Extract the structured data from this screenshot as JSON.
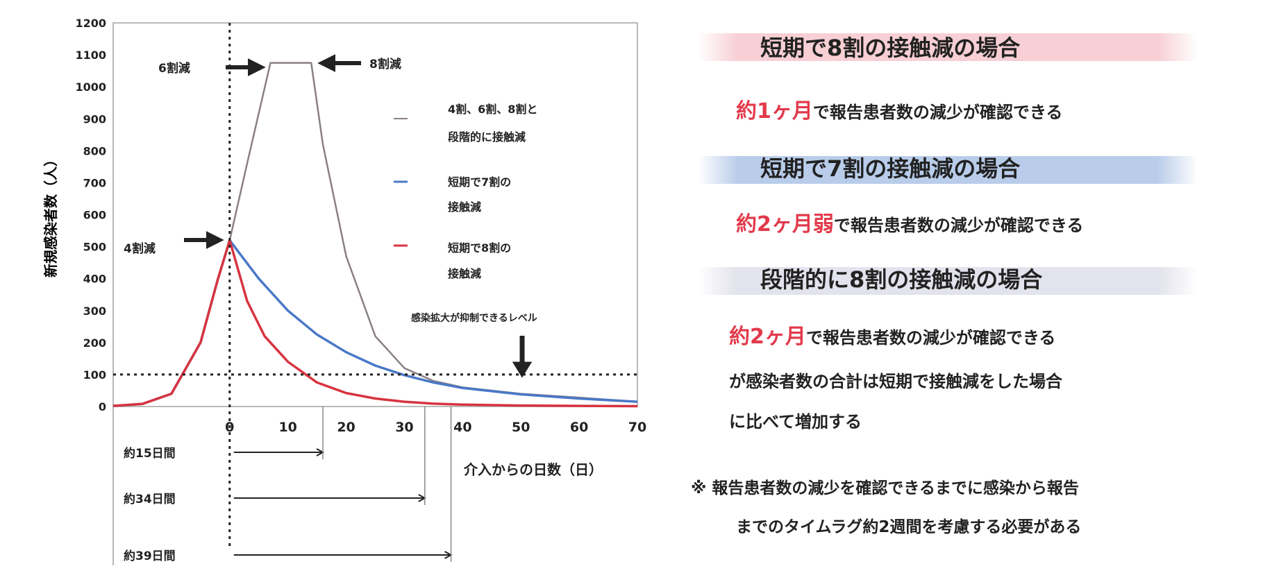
{
  "chart_data": {
    "type": "line",
    "ylabel": "新規感染者数（人）",
    "xlabel": "介入からの日数（日）",
    "x_ticks": [
      0,
      10,
      20,
      30,
      40,
      50,
      60,
      70
    ],
    "y_ticks": [
      0,
      100,
      200,
      300,
      400,
      500,
      600,
      700,
      800,
      900,
      1000,
      1100,
      1200
    ],
    "xlim": [
      -20,
      70
    ],
    "ylim": [
      0,
      1200
    ],
    "threshold": 100,
    "series": [
      {
        "name": "4割、6割、8割と 段階的に接触減",
        "color": "#8a7f85",
        "x": [
          -20,
          -15,
          -10,
          -5,
          -2,
          0,
          3,
          7,
          10,
          14,
          16,
          20,
          25,
          30,
          35,
          40,
          50,
          60,
          70
        ],
        "y": [
          2,
          8,
          40,
          200,
          400,
          520,
          760,
          1075,
          1075,
          1075,
          820,
          470,
          220,
          120,
          80,
          60,
          40,
          28,
          15
        ]
      },
      {
        "name": "短期で7割の 接触減",
        "color": "#4a78c8",
        "x": [
          -20,
          -15,
          -10,
          -5,
          -2,
          0,
          5,
          10,
          15,
          20,
          25,
          30,
          35,
          40,
          50,
          60,
          70
        ],
        "y": [
          2,
          8,
          40,
          200,
          400,
          520,
          400,
          300,
          225,
          170,
          128,
          98,
          75,
          58,
          38,
          25,
          15
        ]
      },
      {
        "name": "短期で8割の 接触減",
        "color": "#d7333f",
        "x": [
          -20,
          -15,
          -10,
          -5,
          -2,
          0,
          3,
          6,
          10,
          15,
          20,
          25,
          30,
          35,
          40,
          50,
          60,
          70
        ],
        "y": [
          2,
          8,
          40,
          200,
          400,
          520,
          330,
          220,
          140,
          75,
          42,
          25,
          15,
          9,
          6,
          3,
          2,
          1
        ]
      }
    ],
    "annotations": {
      "six": "6割減",
      "eight": "8割減",
      "four": "4割減",
      "level": "感染拡大が抑制できるレベル"
    },
    "durations": [
      {
        "label": "約15日間",
        "days": 16
      },
      {
        "label": "約34日間",
        "days": 33.5
      },
      {
        "label": "約39日間",
        "days": 38
      }
    ]
  },
  "panel": {
    "h1": "短期で8割の接触減の場合",
    "h1_color": "#f7cfd4",
    "l1_em": "約1ヶ月",
    "l1_rest": "で報告患者数の減少が確認できる",
    "h2": "短期で7割の接触減の場合",
    "h2_color": "#b9cdea",
    "l2_em": "約2ヶ月弱",
    "l2_rest": "で報告患者数の減少が確認できる",
    "h3": "段階的に8割の接触減の場合",
    "h3_color": "#e2e3ec",
    "l3_em": "約2ヶ月",
    "l3_rest": "で報告患者数の減少が確認できる",
    "l3b": "が感染者数の合計は短期で接触減をした場合",
    "l3c": "に比べて増加する",
    "note1": "※ 報告患者数の減少を確認できるまでに感染から報告",
    "note2": "までのタイムラグ約2週間を考慮する必要がある"
  }
}
